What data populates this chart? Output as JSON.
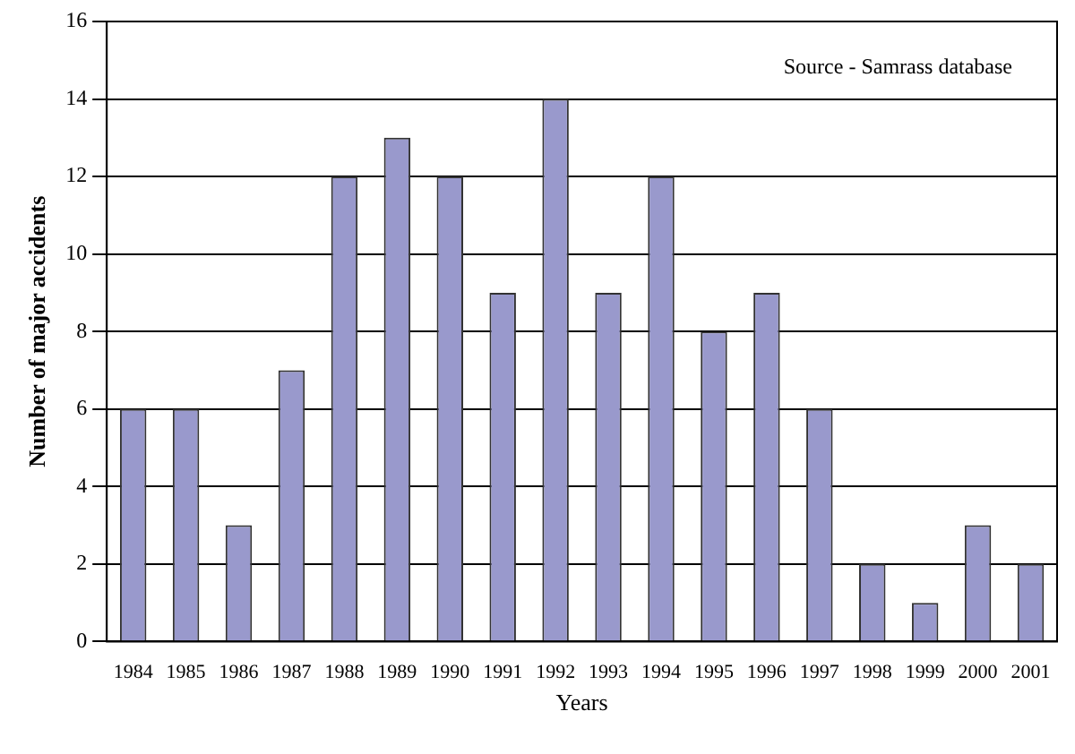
{
  "chart_data": {
    "type": "bar",
    "xlabel": "Years",
    "ylabel": "Number of major accidents",
    "categories": [
      "1984",
      "1985",
      "1986",
      "1987",
      "1988",
      "1989",
      "1990",
      "1991",
      "1992",
      "1993",
      "1994",
      "1995",
      "1996",
      "1997",
      "1998",
      "1999",
      "2000",
      "2001"
    ],
    "values": [
      6,
      6,
      3,
      7,
      12,
      13,
      12,
      9,
      14,
      9,
      12,
      8,
      9,
      6,
      2,
      1,
      3,
      2
    ],
    "color": "#9999cc",
    "ylim": [
      0,
      16
    ],
    "yticks": [
      0,
      2,
      4,
      6,
      8,
      10,
      12,
      14,
      16
    ],
    "grid": "y",
    "legend": false,
    "annotations": [
      "Source - Samrass database"
    ]
  }
}
